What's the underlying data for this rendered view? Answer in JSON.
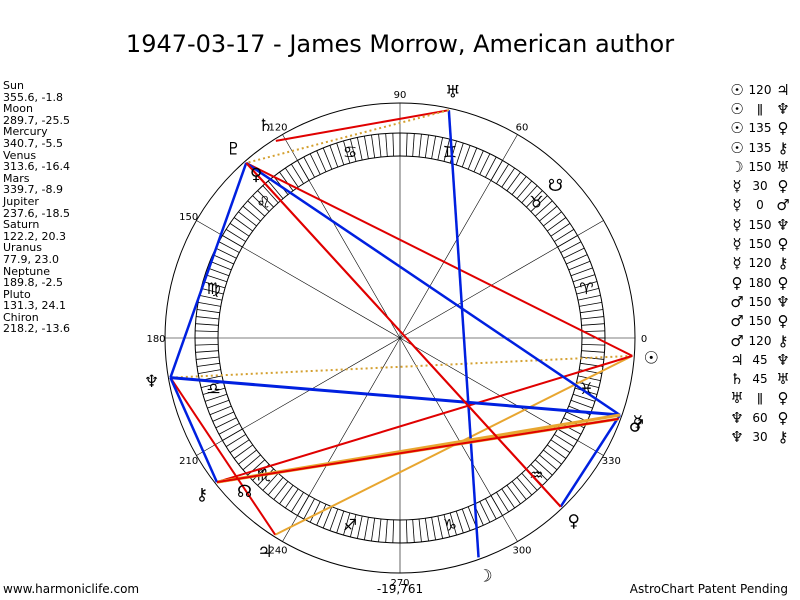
{
  "title": "1947-03-17 - James Morrow, American author",
  "planets": [
    {
      "name": "Sun",
      "pos": "355.6, -1.8",
      "lon": 355.6,
      "glyph": "☉",
      "glyph_lon": 355.6
    },
    {
      "name": "Moon",
      "pos": "289.7, -25.5",
      "lon": 289.7,
      "glyph": "☽",
      "glyph_lon": 289.7
    },
    {
      "name": "Mercury",
      "pos": "340.7, -5.5",
      "lon": 340.7,
      "glyph": "☿",
      "glyph_lon": 340.7
    },
    {
      "name": "Venus",
      "pos": "313.6, -16.4",
      "lon": 313.6,
      "glyph": "♀",
      "glyph_lon": 313.6
    },
    {
      "name": "Mars",
      "pos": "339.7, -8.9",
      "lon": 339.7,
      "glyph": "♂",
      "glyph_lon": 339.7
    },
    {
      "name": "Jupiter",
      "pos": "237.6, -18.5",
      "lon": 237.6,
      "glyph": "♃",
      "glyph_lon": 237.6
    },
    {
      "name": "Saturn",
      "pos": "122.2, 20.3",
      "lon": 122.2,
      "glyph": "♄",
      "glyph_lon": 122.2
    },
    {
      "name": "Uranus",
      "pos": "77.9, 23.0",
      "lon": 77.9,
      "glyph": "♅",
      "glyph_lon": 77.9
    },
    {
      "name": "Neptune",
      "pos": "189.8, -2.5",
      "lon": 189.8,
      "glyph": "♆",
      "glyph_lon": 189.8
    },
    {
      "name": "Pluto",
      "pos": "131.3, 24.1",
      "lon": 131.3,
      "glyph": "♇",
      "glyph_lon": 131.3
    },
    {
      "name": "Chiron",
      "pos": "218.2, -13.6",
      "lon": 218.2,
      "glyph": "⚷",
      "glyph_lon": 218.2
    }
  ],
  "extra_points": [
    {
      "glyph": "☊",
      "lon": 224.5
    },
    {
      "glyph": "☋",
      "lon": 44.5
    },
    {
      "glyph": "♀",
      "lon": 131.3
    }
  ],
  "signs": [
    {
      "glyph": "♈",
      "lon": 15
    },
    {
      "glyph": "♉",
      "lon": 45
    },
    {
      "glyph": "♊",
      "lon": 75
    },
    {
      "glyph": "♋",
      "lon": 105
    },
    {
      "glyph": "♌",
      "lon": 135
    },
    {
      "glyph": "♍",
      "lon": 165
    },
    {
      "glyph": "♎",
      "lon": 195
    },
    {
      "glyph": "♏",
      "lon": 225
    },
    {
      "glyph": "♐",
      "lon": 255
    },
    {
      "glyph": "♑",
      "lon": 285
    },
    {
      "glyph": "♒",
      "lon": 315
    },
    {
      "glyph": "♓",
      "lon": 345
    }
  ],
  "degree_labels": [
    {
      "text": "0",
      "lon": 0
    },
    {
      "text": "60",
      "lon": 60
    },
    {
      "text": "90",
      "lon": 90
    },
    {
      "text": "120",
      "lon": 120
    },
    {
      "text": "150",
      "lon": 150
    },
    {
      "text": "180",
      "lon": 180
    },
    {
      "text": "210",
      "lon": 210
    },
    {
      "text": "240",
      "lon": 240
    },
    {
      "text": "270",
      "lon": 270
    },
    {
      "text": "300",
      "lon": 300
    },
    {
      "text": "330",
      "lon": 330
    }
  ],
  "aspects_list": [
    {
      "a": "☉",
      "v": "120",
      "b": "♃"
    },
    {
      "a": "☉",
      "v": "ǁ",
      "b": "♆"
    },
    {
      "a": "☉",
      "v": "135",
      "b": "♀"
    },
    {
      "a": "☉",
      "v": "135",
      "b": "⚷"
    },
    {
      "a": "☽",
      "v": "150",
      "b": "♅"
    },
    {
      "a": "☿",
      "v": "30",
      "b": "♀"
    },
    {
      "a": "☿",
      "v": "0",
      "b": "♂"
    },
    {
      "a": "☿",
      "v": "150",
      "b": "♆"
    },
    {
      "a": "☿",
      "v": "150",
      "b": "♀"
    },
    {
      "a": "☿",
      "v": "120",
      "b": "⚷"
    },
    {
      "a": "♀",
      "v": "180",
      "b": "♀"
    },
    {
      "a": "♂",
      "v": "150",
      "b": "♆"
    },
    {
      "a": "♂",
      "v": "150",
      "b": "♀"
    },
    {
      "a": "♂",
      "v": "120",
      "b": "⚷"
    },
    {
      "a": "♃",
      "v": "45",
      "b": "♆"
    },
    {
      "a": "♄",
      "v": "45",
      "b": "♅"
    },
    {
      "a": "♅",
      "v": "ǁ",
      "b": "♀"
    },
    {
      "a": "♆",
      "v": "60",
      "b": "♀"
    },
    {
      "a": "♆",
      "v": "30",
      "b": "⚷"
    }
  ],
  "aspect_lines": [
    {
      "from": 355.6,
      "to": 237.6,
      "color": "#e8a630",
      "dash": false,
      "width": 2
    },
    {
      "from": 355.6,
      "to": 189.8,
      "color": "#d4a030",
      "dash": true,
      "width": 2
    },
    {
      "from": 355.6,
      "to": 131.3,
      "color": "#e00000",
      "dash": false,
      "width": 2
    },
    {
      "from": 355.6,
      "to": 218.2,
      "color": "#e00000",
      "dash": false,
      "width": 2
    },
    {
      "from": 289.7,
      "to": 77.9,
      "color": "#0020e0",
      "dash": false,
      "width": 2.5
    },
    {
      "from": 340.7,
      "to": 313.6,
      "color": "#0020e0",
      "dash": false,
      "width": 2.5
    },
    {
      "from": 340.7,
      "to": 189.8,
      "color": "#0020e0",
      "dash": false,
      "width": 3
    },
    {
      "from": 340.7,
      "to": 131.3,
      "color": "#0020e0",
      "dash": false,
      "width": 2.5
    },
    {
      "from": 340.7,
      "to": 218.2,
      "color": "#e8a630",
      "dash": false,
      "width": 3
    },
    {
      "from": 313.6,
      "to": 131.3,
      "color": "#e00000",
      "dash": false,
      "width": 2
    },
    {
      "from": 339.7,
      "to": 218.2,
      "color": "#e8a630",
      "dash": false,
      "width": 3
    },
    {
      "from": 237.6,
      "to": 189.8,
      "color": "#e00000",
      "dash": false,
      "width": 2
    },
    {
      "from": 122.2,
      "to": 77.9,
      "color": "#e00000",
      "dash": false,
      "width": 2
    },
    {
      "from": 77.9,
      "to": 131.3,
      "color": "#d4a030",
      "dash": true,
      "width": 2
    },
    {
      "from": 189.8,
      "to": 131.3,
      "color": "#0020e0",
      "dash": false,
      "width": 2.5
    },
    {
      "from": 189.8,
      "to": 218.2,
      "color": "#0020e0",
      "dash": false,
      "width": 2.5
    },
    {
      "from": 131.3,
      "to": 313.6,
      "color": "#e00000",
      "dash": false,
      "width": 2
    },
    {
      "from": 218.2,
      "to": 339.7,
      "color": "#e00000",
      "dash": false,
      "width": 2
    }
  ],
  "footer": {
    "left": "www.harmoniclife.com",
    "center": "-19,761",
    "right": "AstroChart Patent Pending"
  },
  "colors": {
    "red": "#e00000",
    "blue": "#0020e0",
    "gold": "#e8a630"
  }
}
